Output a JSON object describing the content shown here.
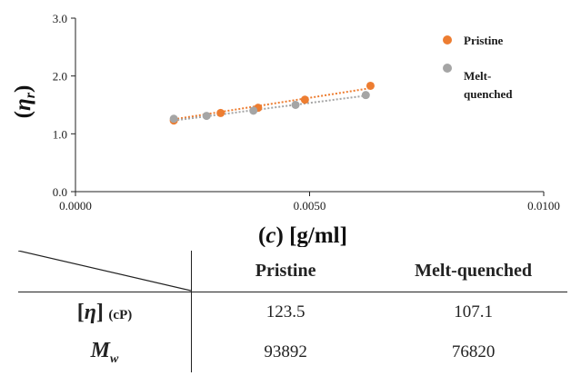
{
  "chart_data": {
    "type": "scatter",
    "xlabel": "(c) [g/ml]",
    "ylabel": "(η r)",
    "xlim": [
      0,
      0.01
    ],
    "ylim": [
      0,
      3.0
    ],
    "x_ticks": [
      "0.0000",
      "0.0050",
      "0.0100"
    ],
    "y_ticks": [
      "0.0",
      "1.0",
      "2.0",
      "3.0"
    ],
    "grid": false,
    "legend_position": "top-right",
    "series": [
      {
        "name": "Pristine",
        "color": "#ED7D31",
        "points": [
          [
            0.0021,
            1.23
          ],
          [
            0.0031,
            1.36
          ],
          [
            0.0039,
            1.45
          ],
          [
            0.0049,
            1.59
          ],
          [
            0.0063,
            1.83
          ]
        ],
        "trendline": [
          [
            0.0021,
            1.25
          ],
          [
            0.0063,
            1.79
          ]
        ]
      },
      {
        "name": "Melt-\nquenched",
        "color": "#A5A5A5",
        "points": [
          [
            0.0021,
            1.26
          ],
          [
            0.0028,
            1.31
          ],
          [
            0.0038,
            1.4
          ],
          [
            0.0047,
            1.5
          ],
          [
            0.0062,
            1.67
          ]
        ],
        "trendline": [
          [
            0.0021,
            1.23
          ],
          [
            0.0062,
            1.66
          ]
        ]
      }
    ]
  },
  "legend": {
    "pristine": "Pristine",
    "melt_line1": "Melt-",
    "melt_line2": "quenched"
  },
  "axes": {
    "xlabel_c": "c",
    "xlabel_unit": "[g/ml]",
    "ylabel_eta": "η",
    "ylabel_sub": "r"
  },
  "table": {
    "headers": [
      "Pristine",
      "Melt-quenched"
    ],
    "rows": [
      {
        "label_symbol": "η",
        "label_unit": "(cP)",
        "values": [
          "123.5",
          "107.1"
        ]
      },
      {
        "label_symbol": "M",
        "label_sub": "w",
        "values": [
          "93892",
          "76820"
        ]
      }
    ]
  }
}
